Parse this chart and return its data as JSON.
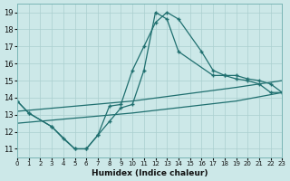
{
  "xlabel": "Humidex (Indice chaleur)",
  "xlim": [
    0,
    23
  ],
  "ylim": [
    10.5,
    19.5
  ],
  "xticks": [
    0,
    1,
    2,
    3,
    4,
    5,
    6,
    7,
    8,
    9,
    10,
    11,
    12,
    13,
    14,
    15,
    16,
    17,
    18,
    19,
    20,
    21,
    22,
    23
  ],
  "yticks": [
    11,
    12,
    13,
    14,
    15,
    16,
    17,
    18,
    19
  ],
  "bg_color": "#cce8e8",
  "line_color": "#1f6f6f",
  "curve1_x": [
    0,
    1,
    3,
    4,
    5,
    6,
    7,
    8,
    9,
    10,
    11,
    12,
    13,
    14,
    16,
    17,
    18,
    19,
    20,
    21,
    22,
    23
  ],
  "curve1_y": [
    13.8,
    13.1,
    12.3,
    11.6,
    11.0,
    11.0,
    11.8,
    13.5,
    13.6,
    15.6,
    17.0,
    18.4,
    19.0,
    18.6,
    16.7,
    15.6,
    15.3,
    15.3,
    15.1,
    15.0,
    14.8,
    14.3
  ],
  "curve2_x": [
    0,
    1,
    3,
    5,
    6,
    7,
    8,
    9,
    10,
    11,
    12,
    13,
    14,
    17,
    18,
    19,
    20,
    21,
    22,
    23
  ],
  "curve2_y": [
    13.8,
    13.1,
    12.3,
    11.0,
    11.0,
    11.8,
    12.6,
    13.4,
    13.6,
    15.6,
    19.0,
    18.6,
    16.7,
    15.3,
    15.3,
    15.1,
    15.0,
    14.8,
    14.3,
    14.3
  ],
  "line3_x": [
    0,
    10,
    19,
    23
  ],
  "line3_y": [
    13.2,
    13.8,
    14.6,
    15.0
  ],
  "line4_x": [
    0,
    10,
    19,
    23
  ],
  "line4_y": [
    12.5,
    13.1,
    13.8,
    14.3
  ]
}
